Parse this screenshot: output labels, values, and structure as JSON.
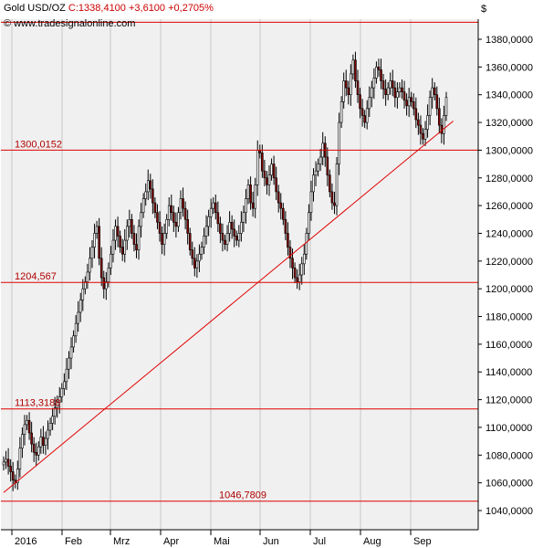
{
  "header": {
    "instrument": "Gold USD/OZ",
    "quote": "C:1338,4100 +3,6100 +0,2705%",
    "watermark": "© www.tradesignalonline.com",
    "currency": "$"
  },
  "colors": {
    "background": "#f0f0f0",
    "candle_up": "#ffffff",
    "candle_down": "#800000",
    "candle_outline": "#000000",
    "lines": "#e00000",
    "grid": "#c8c8c8",
    "label_text": "#b00000"
  },
  "chart_data": {
    "type": "candlestick",
    "title": "Gold USD/OZ",
    "ylim": [
      1030,
      1395
    ],
    "y_ticks": [
      "1040,0000",
      "1060,0000",
      "1080,0000",
      "1100,0000",
      "1120,0000",
      "1140,0000",
      "1160,0000",
      "1180,0000",
      "1200,0000",
      "1220,0000",
      "1240,0000",
      "1260,0000",
      "1280,0000",
      "1300,0000",
      "1320,0000",
      "1340,0000",
      "1360,0000",
      "1380,0000"
    ],
    "x_ticks": [
      "2016",
      "Feb",
      "Mrz",
      "Apr",
      "Mai",
      "Jun",
      "Jul",
      "Aug",
      "Sep"
    ],
    "grid": "vertical-month",
    "horizontal_levels": [
      {
        "label": "1300,0152",
        "value": 1300.0152
      },
      {
        "label": "1204,567",
        "value": 1204.567
      },
      {
        "label": "1113,3188",
        "value": 1113.3188
      },
      {
        "label": "1046,7809",
        "value": 1046.7809
      },
      {
        "label": "",
        "value": 1392.3
      }
    ],
    "trendline": {
      "from": [
        0,
        1053
      ],
      "to": [
        193,
        1321
      ]
    },
    "series": [
      {
        "closes": [
          1075,
          1077,
          1072,
          1068,
          1062,
          1060,
          1070,
          1085,
          1095,
          1102,
          1105,
          1096,
          1088,
          1082,
          1080,
          1086,
          1093,
          1087,
          1092,
          1098,
          1103,
          1108,
          1114,
          1118,
          1122,
          1128,
          1133,
          1142,
          1150,
          1158,
          1166,
          1175,
          1183,
          1192,
          1200,
          1205,
          1212,
          1222,
          1230,
          1240,
          1245,
          1222,
          1208,
          1200,
          1205,
          1215,
          1225,
          1235,
          1245,
          1238,
          1230,
          1225,
          1235,
          1245,
          1250,
          1240,
          1232,
          1228,
          1245,
          1255,
          1265,
          1270,
          1278,
          1272,
          1262,
          1255,
          1248,
          1240,
          1232,
          1240,
          1250,
          1260,
          1255,
          1248,
          1245,
          1255,
          1265,
          1258,
          1250,
          1240,
          1228,
          1222,
          1215,
          1220,
          1225,
          1230,
          1238,
          1245,
          1252,
          1258,
          1262,
          1255,
          1247,
          1240,
          1235,
          1232,
          1240,
          1248,
          1243,
          1238,
          1235,
          1240,
          1248,
          1255,
          1265,
          1275,
          1262,
          1258,
          1275,
          1300,
          1298,
          1285,
          1280,
          1275,
          1282,
          1290,
          1280,
          1270,
          1262,
          1258,
          1250,
          1240,
          1230,
          1222,
          1215,
          1208,
          1205,
          1210,
          1218,
          1225,
          1240,
          1255,
          1270,
          1282,
          1285,
          1290,
          1295,
          1305,
          1295,
          1282,
          1270,
          1262,
          1260,
          1290,
          1320,
          1335,
          1350,
          1345,
          1340,
          1355,
          1365,
          1350,
          1340,
          1330,
          1325,
          1320,
          1330,
          1338,
          1345,
          1352,
          1360,
          1358,
          1350,
          1344,
          1340,
          1345,
          1350,
          1345,
          1338,
          1342,
          1345,
          1342,
          1336,
          1332,
          1338,
          1335,
          1330,
          1322,
          1318,
          1312,
          1308,
          1315,
          1325,
          1338,
          1345,
          1340,
          1330,
          1318,
          1312,
          1325,
          1338
        ],
        "last_close": 1338.41
      }
    ]
  }
}
